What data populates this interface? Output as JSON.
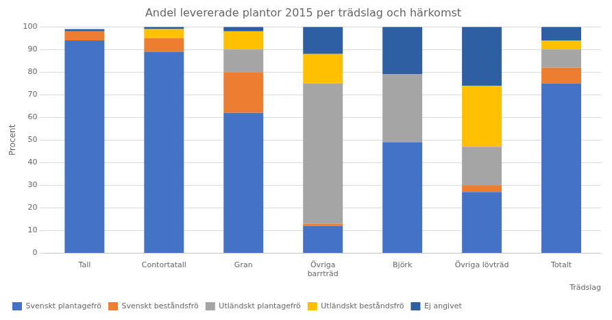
{
  "chart_data": {
    "type": "bar",
    "stacked": true,
    "title": "Andel levererade plantor 2015 per trädslag och härkomst",
    "ylabel": "Procent",
    "xlabel": "Trädslag",
    "categories": [
      "Tall",
      "Contortatall",
      "Gran",
      "Övriga\nbarrträd",
      "Björk",
      "Övriga lövträd",
      "Totalt"
    ],
    "series": [
      {
        "name": "Svenskt plantagefrö",
        "color": "#4472C4",
        "values": [
          94,
          89,
          62,
          12,
          49,
          27,
          75
        ]
      },
      {
        "name": "Svenskt beståndsfrö",
        "color": "#ED7D31",
        "values": [
          4,
          6,
          18,
          1,
          0,
          3,
          7
        ]
      },
      {
        "name": "Utländskt plantagefrö",
        "color": "#A5A5A5",
        "values": [
          0,
          0,
          10,
          62,
          30,
          17,
          8
        ]
      },
      {
        "name": "Utländskt beståndsfrö",
        "color": "#FFC000",
        "values": [
          0,
          4,
          8,
          13,
          0,
          27,
          4
        ]
      },
      {
        "name": "Ej angivet",
        "color": "#2E5FA3",
        "values": [
          1,
          1,
          2,
          12,
          21,
          26,
          6
        ]
      }
    ],
    "ylim": [
      0,
      100
    ],
    "yticks": [
      0,
      10,
      20,
      30,
      40,
      50,
      60,
      70,
      80,
      90,
      100
    ],
    "grid": true,
    "legend": "bottom"
  }
}
